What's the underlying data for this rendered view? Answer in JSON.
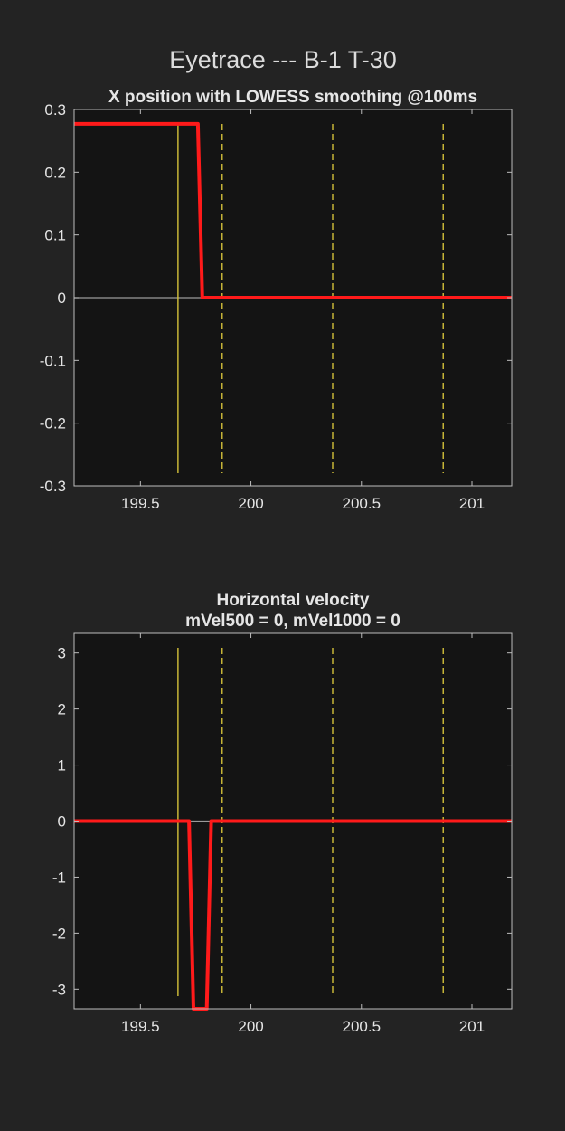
{
  "figure_title": "Eyetrace ---  B-1 T-30",
  "colors": {
    "background": "#232323",
    "axes_face": "#141414",
    "axes_border": "#bdbdbd",
    "text": "#e6e6e6",
    "trace": "#ff1a1a",
    "zero_line": "#9a9a9a",
    "event_line": "#d4c13a"
  },
  "chart_data": [
    {
      "type": "line",
      "title": "X position with LOWESS smoothing @100ms",
      "subtitle": "",
      "xlabel": "",
      "ylabel": "",
      "xlim": [
        199.2,
        201.18
      ],
      "ylim": [
        -0.3,
        0.3
      ],
      "xticks": [
        199.5,
        200,
        200.5,
        201
      ],
      "xtick_labels": [
        "199.5",
        "200",
        "200.5",
        "201"
      ],
      "yticks": [
        0.3,
        0.2,
        0.1,
        0,
        -0.1,
        -0.2,
        -0.3
      ],
      "ytick_labels": [
        "0.3",
        "0.2",
        "0.1",
        "0",
        "-0.1",
        "-0.2",
        "-0.3"
      ],
      "grid": false,
      "zero_line": true,
      "event_lines": [
        {
          "x": 199.67,
          "style": "solid"
        },
        {
          "x": 199.87,
          "style": "dashed"
        },
        {
          "x": 200.37,
          "style": "dashed"
        },
        {
          "x": 200.87,
          "style": "dashed"
        }
      ],
      "series": [
        {
          "x": [
            199.2,
            199.76,
            199.78,
            201.18
          ],
          "y": [
            0.277,
            0.277,
            0.0,
            0.0
          ]
        }
      ]
    },
    {
      "type": "line",
      "title": "Horizontal velocity",
      "subtitle": "mVel500 = 0, mVel1000 = 0",
      "xlabel": "",
      "ylabel": "",
      "xlim": [
        199.2,
        201.18
      ],
      "ylim": [
        -3.35,
        3.35
      ],
      "xticks": [
        199.5,
        200,
        200.5,
        201
      ],
      "xtick_labels": [
        "199.5",
        "200",
        "200.5",
        "201"
      ],
      "yticks": [
        3,
        2,
        1,
        0,
        -1,
        -2,
        -3
      ],
      "ytick_labels": [
        "3",
        "2",
        "1",
        "0",
        "-1",
        "-2",
        "-3"
      ],
      "grid": false,
      "zero_line": true,
      "event_lines": [
        {
          "x": 199.67,
          "style": "solid"
        },
        {
          "x": 199.87,
          "style": "dashed"
        },
        {
          "x": 200.37,
          "style": "dashed"
        },
        {
          "x": 200.87,
          "style": "dashed"
        }
      ],
      "series": [
        {
          "x": [
            199.2,
            199.72,
            199.74,
            199.8,
            199.82,
            201.18
          ],
          "y": [
            0,
            0,
            -3.35,
            -3.35,
            0,
            0
          ]
        }
      ]
    }
  ]
}
